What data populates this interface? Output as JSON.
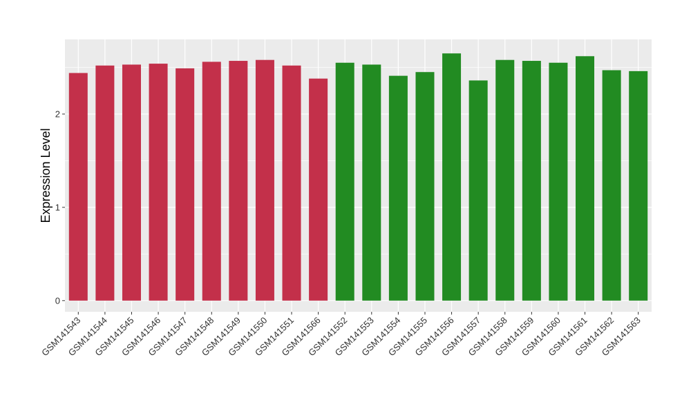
{
  "chart_data": {
    "type": "bar",
    "ylabel": "Expression Level",
    "xlabel": "",
    "ylim": [
      -0.12,
      2.8
    ],
    "yticks": [
      0,
      1,
      2
    ],
    "grid": true,
    "colors": {
      "panel": "#EBEBEB",
      "grid": "#FFFFFF"
    },
    "categories": [
      "GSM141543",
      "GSM141544",
      "GSM141545",
      "GSM141546",
      "GSM141547",
      "GSM141548",
      "GSM141549",
      "GSM141550",
      "GSM141551",
      "GSM141566",
      "GSM141552",
      "GSM141553",
      "GSM141554",
      "GSM141555",
      "GSM141556",
      "GSM141557",
      "GSM141558",
      "GSM141559",
      "GSM141560",
      "GSM141561",
      "GSM141562",
      "GSM141563"
    ],
    "values": [
      2.44,
      2.52,
      2.53,
      2.54,
      2.49,
      2.56,
      2.57,
      2.58,
      2.52,
      2.38,
      2.55,
      2.53,
      2.41,
      2.45,
      2.65,
      2.36,
      2.58,
      2.57,
      2.55,
      2.62,
      2.47,
      2.46
    ],
    "bar_colors": [
      "#C3304A",
      "#C3304A",
      "#C3304A",
      "#C3304A",
      "#C3304A",
      "#C3304A",
      "#C3304A",
      "#C3304A",
      "#C3304A",
      "#C3304A",
      "#228B22",
      "#228B22",
      "#228B22",
      "#228B22",
      "#228B22",
      "#228B22",
      "#228B22",
      "#228B22",
      "#228B22",
      "#228B22",
      "#228B22",
      "#228B22"
    ]
  }
}
